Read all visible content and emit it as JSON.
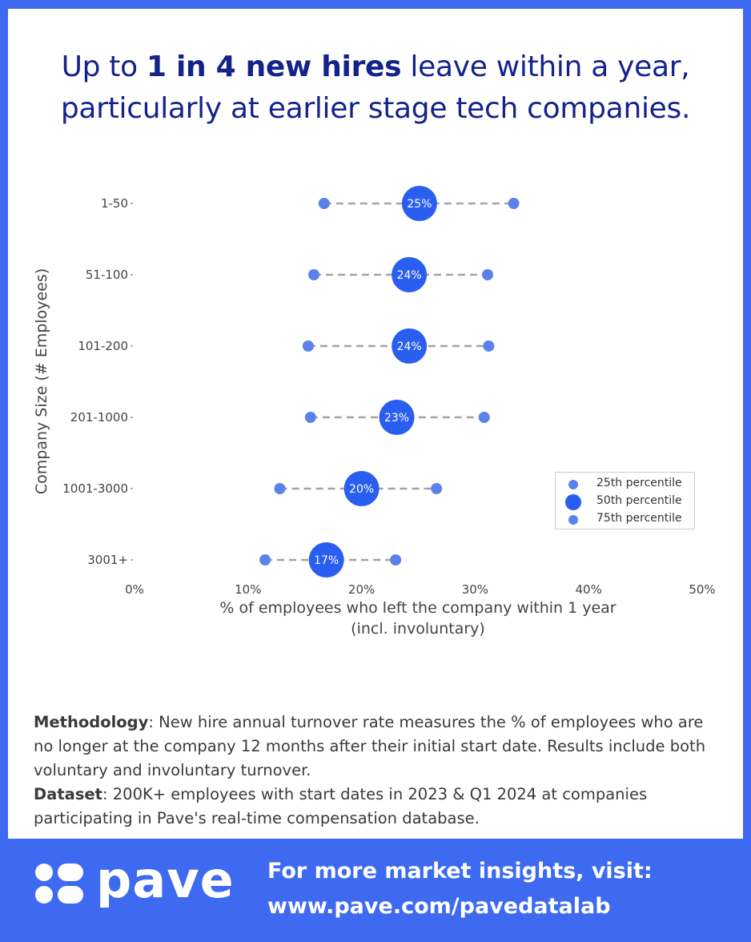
{
  "title": {
    "part1": "Up to ",
    "bold": "1 in 4 new hires",
    "part2": " leave within a year,",
    "line2": "particularly at earlier stage tech companies."
  },
  "chart_data": {
    "type": "dumbbell",
    "ylabel": "Company Size (# Employees)",
    "xlabel_line1": "% of employees who left the company within 1 year",
    "xlabel_line2": "(incl. involuntary)",
    "xlim": [
      0,
      50
    ],
    "xticks": [
      "0%",
      "10%",
      "20%",
      "30%",
      "40%",
      "50%"
    ],
    "categories": [
      "1-50",
      "51-100",
      "101-200",
      "201-1000",
      "1001-3000",
      "3001+"
    ],
    "series": [
      {
        "name": "25th percentile",
        "values": [
          16.7,
          15.8,
          15.3,
          15.5,
          12.8,
          11.5
        ]
      },
      {
        "name": "50th percentile",
        "values": [
          25.1,
          24.2,
          24.2,
          23.1,
          20.0,
          16.9
        ]
      },
      {
        "name": "75th percentile",
        "values": [
          33.4,
          31.1,
          31.2,
          30.8,
          26.6,
          23.0
        ]
      }
    ],
    "median_labels": [
      "25%",
      "24%",
      "24%",
      "23%",
      "20%",
      "17%"
    ],
    "colors": {
      "p25": "#5b82ea",
      "p50": "#2a5ef0",
      "p75": "#5b82ea",
      "line": "#a3a3a3"
    }
  },
  "legend": {
    "items": [
      "25th percentile",
      "50th percentile",
      "75th percentile"
    ]
  },
  "methodology": {
    "label": "Methodology",
    "text": ": New hire annual turnover rate measures the % of employees who are no longer at the company 12 months after their initial start date. Results include both voluntary and involuntary turnover.",
    "dataset_label": "Dataset",
    "dataset_text": ": 200K+ employees with start dates in 2023 & Q1 2024 at companies participating in Pave's real-time compensation database."
  },
  "footer": {
    "brand": "pave",
    "cta_line1": "For more market insights, visit:",
    "cta_line2": "www.pave.com/pavedatalab"
  }
}
